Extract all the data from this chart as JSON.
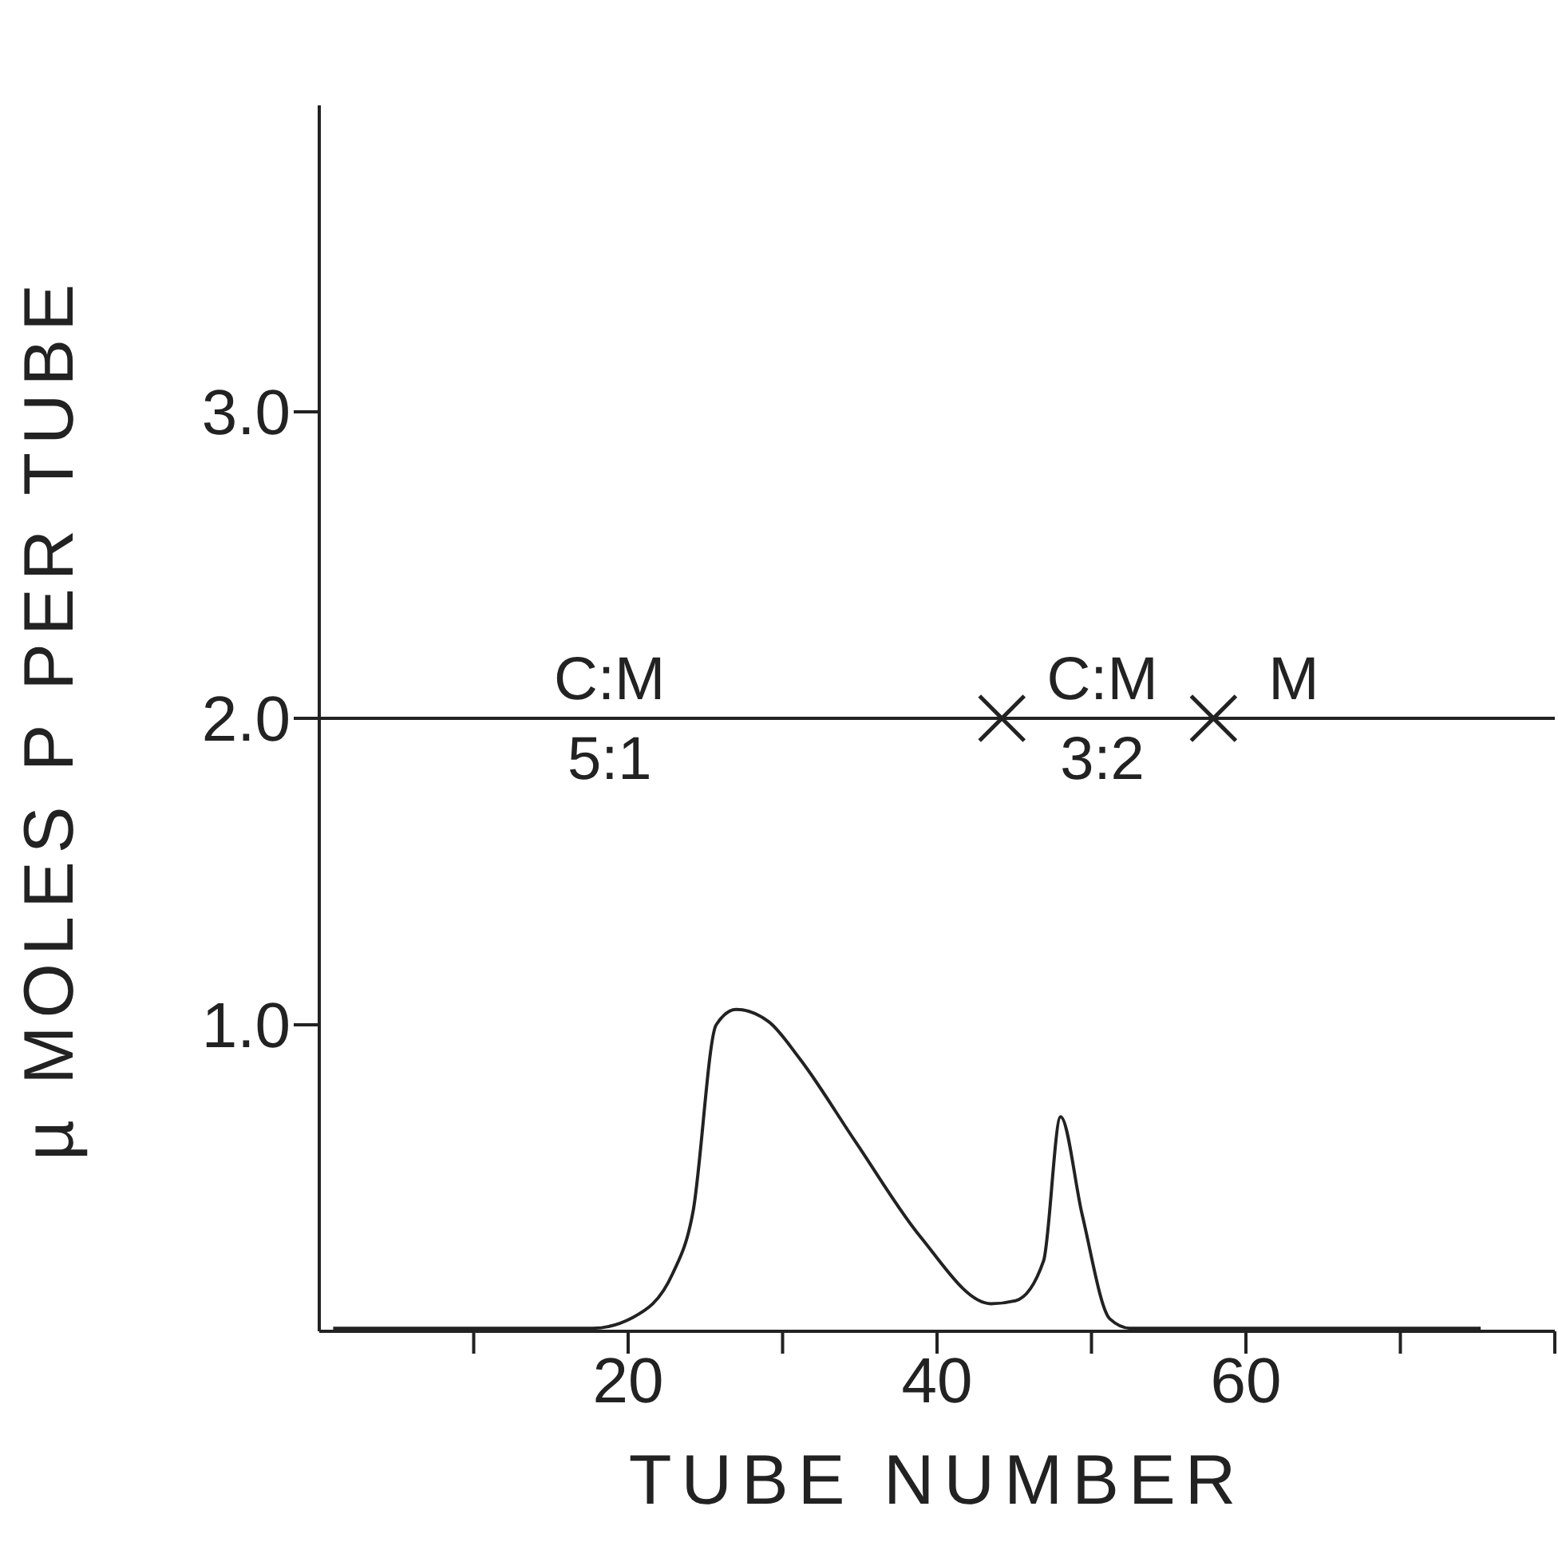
{
  "chart_data": {
    "type": "line",
    "xlabel": "TUBE NUMBER",
    "ylabel": "µ MOLES P PER TUBE",
    "xlim": [
      0,
      80
    ],
    "ylim": [
      0,
      4
    ],
    "xticks": [
      {
        "value": 10,
        "label": null
      },
      20,
      {
        "value": 30,
        "label": null
      },
      40,
      {
        "value": 50,
        "label": null
      },
      60,
      {
        "value": 70,
        "label": null
      },
      {
        "value": 80,
        "label": null
      }
    ],
    "yticks": [
      {
        "value": 1,
        "label": "1.0"
      },
      {
        "value": 2,
        "label": "2.0"
      },
      {
        "value": 3,
        "label": "3.0"
      }
    ],
    "grid": false,
    "legend": false,
    "marker": "none",
    "line_style": "solid",
    "series": [
      {
        "color": "#222222",
        "x": [
          0.9,
          10,
          17.7,
          20.3,
          22.9,
          24.2,
          25.7,
          27.0,
          29.1,
          31.1,
          34.7,
          38.9,
          43.5,
          45.1,
          46.9,
          48.0,
          49.4,
          51.2,
          52.5,
          60,
          70,
          75.2
        ],
        "values": [
          0.01,
          0.01,
          0.01,
          0.045,
          0.19,
          0.39,
          1.0,
          1.05,
          1.01,
          0.89,
          0.62,
          0.31,
          0.09,
          0.1,
          0.23,
          0.7,
          0.38,
          0.04,
          0.01,
          0.01,
          0.01,
          0.01
        ]
      },
      {
        "type": "scatter",
        "marker": "cross",
        "color": "#222222",
        "x": [
          44.2,
          57.9
        ],
        "values": [
          2.0,
          2.0
        ]
      }
    ],
    "ref_lines": [
      {
        "axis": "y",
        "value": 2.0,
        "color": "#222222"
      }
    ],
    "annotations": [
      {
        "text": "C:M 5:1",
        "x": 18.8,
        "y": 2.0
      },
      {
        "text": "C:M 3:2",
        "x": 50.7,
        "y": 2.0
      },
      {
        "text": "M",
        "x": 63.1,
        "y": 2.0
      }
    ]
  }
}
